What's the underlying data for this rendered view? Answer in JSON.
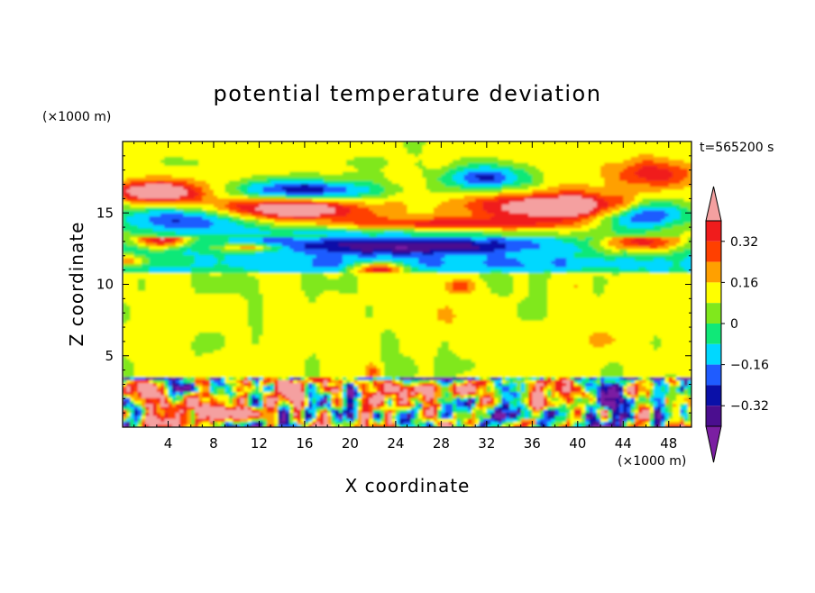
{
  "chart_data": {
    "type": "heatmap",
    "title": "potential temperature deviation",
    "xlabel": "X coordinate",
    "ylabel": "Z coordinate",
    "x_unit": "(×1000 m)",
    "y_unit": "(×1000 m)",
    "time_label": "t=565200 s",
    "xlim": [
      0,
      50
    ],
    "ylim": [
      0,
      20
    ],
    "x_ticks": [
      4,
      8,
      12,
      16,
      20,
      24,
      28,
      32,
      36,
      40,
      44,
      48
    ],
    "y_ticks": [
      5,
      10,
      15
    ],
    "colorbar": {
      "levels": [
        -0.48,
        -0.4,
        -0.32,
        -0.24,
        -0.16,
        -0.08,
        0,
        0.08,
        0.16,
        0.24,
        0.32,
        0.4
      ],
      "labels": [
        "0.32",
        "0.16",
        "0",
        "−0.16",
        "−0.32"
      ],
      "label_values": [
        0.32,
        0.16,
        0,
        -0.16,
        -0.32
      ],
      "colors": [
        "#7b1fa2",
        "#4b0e8f",
        "#0a10a8",
        "#1f5cff",
        "#00d8ff",
        "#10e878",
        "#80e81c",
        "#ffff00",
        "#ffa000",
        "#ff4000",
        "#f01c1c",
        "#f4a0a0"
      ],
      "extend": "both"
    }
  }
}
